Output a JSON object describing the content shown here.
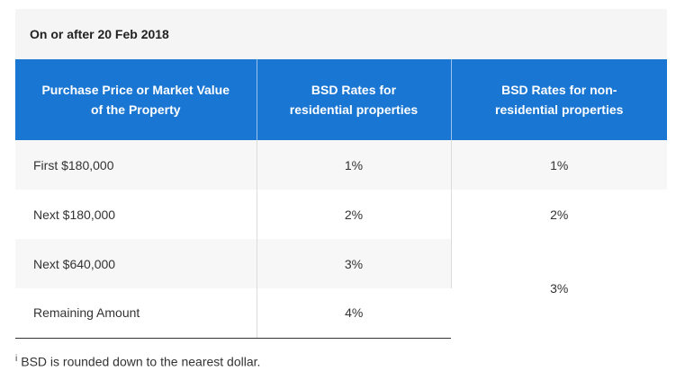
{
  "caption": "On or after 20 Feb 2018",
  "table": {
    "headers": [
      "Purchase Price or Market Value of the Property",
      "BSD Rates for residential properties",
      "BSD Rates for non-residential properties"
    ],
    "rows": [
      {
        "label": "First $180,000",
        "residential": "1%",
        "non_residential": "1%"
      },
      {
        "label": "Next $180,000",
        "residential": "2%",
        "non_residential": "2%"
      },
      {
        "label": "Next $640,000",
        "residential": "3%"
      },
      {
        "label": "Remaining Amount",
        "residential": "4%"
      }
    ],
    "merged_non_residential": "3%"
  },
  "note": {
    "marker": "i",
    "text": "BSD is rounded down to the nearest dollar."
  }
}
